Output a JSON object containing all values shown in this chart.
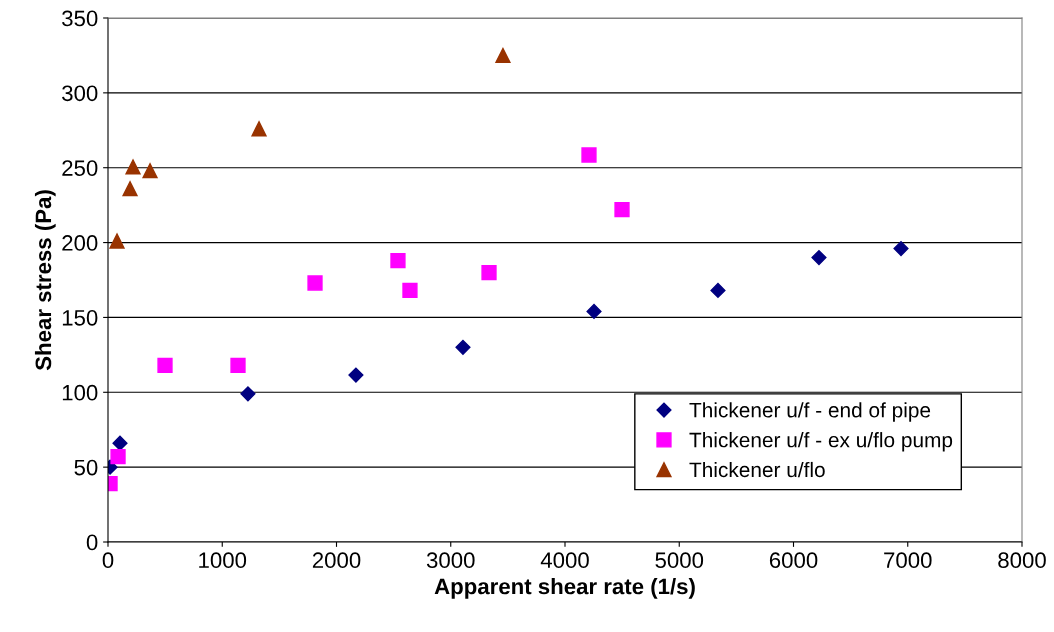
{
  "chart_data": {
    "type": "scatter",
    "xlabel": "Apparent shear rate (1/s)",
    "ylabel": "Shear stress (Pa)",
    "xlim": [
      0,
      8000
    ],
    "ylim": [
      0,
      350
    ],
    "xticks": [
      0,
      1000,
      2000,
      3000,
      4000,
      5000,
      6000,
      7000,
      8000
    ],
    "yticks": [
      0,
      50,
      100,
      150,
      200,
      250,
      300,
      350
    ],
    "grid": "y",
    "legend": "bottom right",
    "series": [
      {
        "name": "Thickener u/f - end of pipe",
        "color": "#000080",
        "marker": "diamond",
        "x": [
          18,
          105,
          1225,
          2170,
          3107,
          4254,
          5339,
          6223,
          6941
        ],
        "values": [
          50,
          66,
          99,
          111.5,
          130,
          154,
          168,
          190,
          196
        ]
      },
      {
        "name": "Thickener u/f - ex u/flo pump",
        "color": "#ff00ff",
        "marker": "square",
        "x": [
          18,
          88,
          499,
          1138,
          1812,
          2538,
          2643,
          3335,
          4210,
          4499
        ],
        "values": [
          39,
          57,
          118,
          118,
          173,
          188,
          168,
          180,
          258.5,
          222
        ]
      },
      {
        "name": "Thickener u/flo",
        "color": "#993300",
        "marker": "triangle",
        "x": [
          79,
          193,
          219,
          368,
          1322,
          3457
        ],
        "values": [
          201,
          236,
          250.5,
          248,
          276,
          325
        ]
      }
    ]
  }
}
